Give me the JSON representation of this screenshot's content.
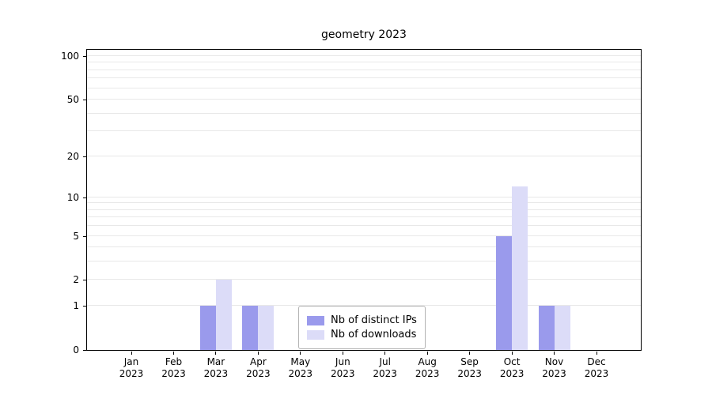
{
  "chart_data": {
    "type": "bar",
    "title": "geometry 2023",
    "categories": [
      "Jan",
      "Feb",
      "Mar",
      "Apr",
      "May",
      "Jun",
      "Jul",
      "Aug",
      "Sep",
      "Oct",
      "Nov",
      "Dec"
    ],
    "year_label": "2023",
    "series": [
      {
        "name": "Nb of distinct IPs",
        "color": "#9a9aec",
        "values": [
          0,
          0,
          1,
          1,
          0,
          0,
          0,
          0,
          0,
          5,
          1,
          0
        ]
      },
      {
        "name": "Nb of downloads",
        "color": "#dcdcf8",
        "values": [
          0,
          0,
          2,
          1,
          0,
          0,
          0,
          0,
          0,
          12,
          1,
          0
        ]
      }
    ],
    "yticks": [
      0,
      1,
      2,
      5,
      10,
      20,
      50,
      100
    ],
    "ylim": [
      0,
      110
    ],
    "yscale": "log1p",
    "grid": "horizontal-minor",
    "legend_position": "lower center",
    "xlabel": "",
    "ylabel": ""
  },
  "colors": {
    "background": "#ffffff",
    "spine": "#000000",
    "grid": "#e8e8e8",
    "legend_border": "#b3b3b3",
    "text": "#000000"
  }
}
